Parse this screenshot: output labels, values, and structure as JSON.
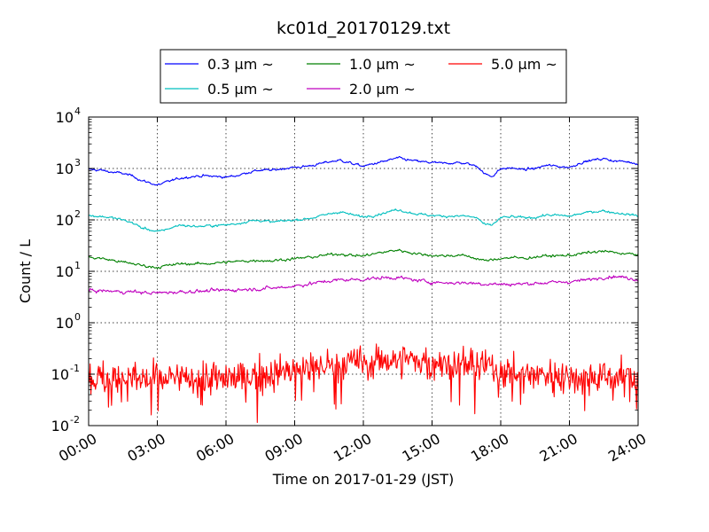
{
  "chart_data": {
    "type": "line",
    "title": "kc01d_20170129.txt",
    "xlabel": "Time on 2017-01-29 (JST)",
    "ylabel": "Count / L",
    "y_scale": "log",
    "ylim": [
      0.01,
      10000
    ],
    "xlim": [
      "00:00",
      "24:00"
    ],
    "x_unit": "hours",
    "grid": true,
    "legend_position": "top-center",
    "x_ticks": [
      "00:00",
      "03:00",
      "06:00",
      "09:00",
      "12:00",
      "15:00",
      "18:00",
      "21:00",
      "24:00"
    ],
    "y_ticks": [
      {
        "base": "10",
        "exp": "-2",
        "value": 0.01
      },
      {
        "base": "10",
        "exp": "-1",
        "value": 0.1
      },
      {
        "base": "10",
        "exp": "0",
        "value": 1
      },
      {
        "base": "10",
        "exp": "1",
        "value": 10
      },
      {
        "base": "10",
        "exp": "2",
        "value": 100
      },
      {
        "base": "10",
        "exp": "3",
        "value": 1000
      },
      {
        "base": "10",
        "exp": "4",
        "value": 10000
      }
    ],
    "series": [
      {
        "name": "0.3 μm ~",
        "color": "#0000ff",
        "noise": 0.035,
        "x": [
          0,
          0.5,
          1.0,
          1.5,
          2.0,
          2.3,
          2.6,
          3.0,
          3.5,
          4.0,
          4.5,
          5.0,
          5.5,
          6.0,
          6.5,
          7.0,
          7.5,
          8.0,
          8.5,
          9.0,
          9.5,
          10.0,
          10.5,
          11.0,
          11.5,
          12.0,
          12.5,
          13.0,
          13.5,
          14.0,
          14.5,
          15.0,
          15.5,
          16.0,
          16.5,
          16.8,
          17.0,
          17.3,
          17.6,
          18.0,
          18.5,
          19.0,
          19.5,
          20.0,
          20.5,
          21.0,
          21.5,
          22.0,
          22.5,
          23.0,
          23.5,
          24.0
        ],
        "y": [
          950,
          930,
          850,
          800,
          700,
          580,
          540,
          470,
          560,
          650,
          700,
          720,
          700,
          680,
          730,
          850,
          930,
          920,
          1000,
          1050,
          1100,
          1200,
          1350,
          1450,
          1250,
          1100,
          1250,
          1400,
          1600,
          1450,
          1350,
          1300,
          1250,
          1300,
          1250,
          1150,
          1100,
          780,
          700,
          980,
          1020,
          950,
          1000,
          1150,
          1100,
          1050,
          1300,
          1450,
          1550,
          1400,
          1350,
          1250
        ]
      },
      {
        "name": "0.5 μm ~",
        "color": "#00bfbf",
        "noise": 0.035,
        "x": [
          0,
          0.5,
          1.0,
          1.5,
          2.0,
          2.3,
          2.6,
          3.0,
          3.5,
          4.0,
          4.5,
          5.0,
          5.5,
          6.0,
          6.5,
          7.0,
          7.5,
          8.0,
          8.5,
          9.0,
          9.5,
          10.0,
          10.5,
          11.0,
          11.5,
          12.0,
          12.5,
          13.0,
          13.5,
          14.0,
          14.5,
          15.0,
          15.5,
          16.0,
          16.5,
          16.8,
          17.0,
          17.3,
          17.6,
          18.0,
          18.5,
          19.0,
          19.5,
          20.0,
          20.5,
          21.0,
          21.5,
          22.0,
          22.5,
          23.0,
          23.5,
          24.0
        ],
        "y": [
          120,
          118,
          110,
          100,
          85,
          70,
          66,
          58,
          68,
          80,
          75,
          75,
          78,
          80,
          85,
          95,
          98,
          90,
          95,
          100,
          105,
          115,
          130,
          145,
          125,
          115,
          125,
          140,
          160,
          140,
          128,
          122,
          118,
          120,
          118,
          112,
          108,
          80,
          78,
          110,
          115,
          110,
          112,
          125,
          122,
          118,
          132,
          145,
          150,
          138,
          130,
          120
        ]
      },
      {
        "name": "1.0 μm ~",
        "color": "#008000",
        "noise": 0.04,
        "x": [
          0,
          0.5,
          1.0,
          1.5,
          2.0,
          2.3,
          2.6,
          3.0,
          3.5,
          4.0,
          4.5,
          5.0,
          5.5,
          6.0,
          6.5,
          7.0,
          7.5,
          8.0,
          8.5,
          9.0,
          9.5,
          10.0,
          10.5,
          11.0,
          11.5,
          12.0,
          12.5,
          13.0,
          13.5,
          14.0,
          14.5,
          15.0,
          15.5,
          16.0,
          16.5,
          16.8,
          17.0,
          17.3,
          17.6,
          18.0,
          18.5,
          19.0,
          19.5,
          20.0,
          20.5,
          21.0,
          21.5,
          22.0,
          22.5,
          23.0,
          23.5,
          24.0
        ],
        "y": [
          18.5,
          18,
          16.5,
          15,
          14,
          13,
          12.5,
          12,
          13,
          14,
          14,
          14,
          14.5,
          15,
          15.5,
          16,
          16.5,
          16,
          17,
          17.5,
          18.5,
          19.5,
          21,
          22,
          20.5,
          20,
          22,
          24,
          26,
          23.5,
          21.5,
          20.5,
          20,
          20.5,
          20,
          18.5,
          17.5,
          16,
          16.5,
          18,
          18.5,
          18,
          19,
          20,
          20,
          20.5,
          22,
          23.5,
          24.5,
          23,
          22,
          21
        ]
      },
      {
        "name": "2.0 μm ~",
        "color": "#bf00bf",
        "noise": 0.05,
        "x": [
          0,
          0.5,
          1.0,
          1.5,
          2.0,
          2.3,
          2.6,
          3.0,
          3.5,
          4.0,
          4.5,
          5.0,
          5.5,
          6.0,
          6.5,
          7.0,
          7.5,
          8.0,
          8.5,
          9.0,
          9.5,
          10.0,
          10.5,
          11.0,
          11.5,
          12.0,
          12.5,
          13.0,
          13.5,
          14.0,
          14.5,
          15.0,
          15.5,
          16.0,
          16.5,
          16.8,
          17.0,
          17.3,
          17.6,
          18.0,
          18.5,
          19.0,
          19.5,
          20.0,
          20.5,
          21.0,
          21.5,
          22.0,
          22.5,
          23.0,
          23.5,
          24.0
        ],
        "y": [
          4.2,
          4.2,
          4.1,
          4.0,
          4.0,
          3.9,
          3.8,
          3.8,
          3.9,
          4.0,
          4.1,
          4.1,
          4.2,
          4.3,
          4.4,
          4.5,
          4.6,
          4.7,
          4.9,
          5.2,
          5.6,
          6.0,
          6.5,
          6.8,
          6.9,
          7.0,
          7.3,
          7.5,
          7.6,
          7.0,
          6.5,
          6.2,
          6.0,
          6.0,
          6.0,
          5.9,
          5.8,
          5.7,
          5.7,
          5.6,
          5.6,
          5.7,
          5.9,
          6.0,
          6.1,
          6.3,
          6.6,
          7.0,
          7.8,
          8.0,
          7.5,
          7.0
        ]
      },
      {
        "name": "5.0 μm ~",
        "color": "#ff0000",
        "noise": 0.42,
        "x": [
          0,
          1,
          2,
          3,
          4,
          5,
          6,
          7,
          8,
          9,
          10,
          11,
          12,
          13,
          14,
          15,
          16,
          17,
          18,
          19,
          20,
          21,
          22,
          23,
          24
        ],
        "y": [
          0.08,
          0.08,
          0.08,
          0.08,
          0.08,
          0.08,
          0.08,
          0.09,
          0.1,
          0.12,
          0.14,
          0.16,
          0.17,
          0.19,
          0.19,
          0.17,
          0.16,
          0.15,
          0.12,
          0.1,
          0.1,
          0.09,
          0.09,
          0.09,
          0.09
        ]
      }
    ]
  }
}
